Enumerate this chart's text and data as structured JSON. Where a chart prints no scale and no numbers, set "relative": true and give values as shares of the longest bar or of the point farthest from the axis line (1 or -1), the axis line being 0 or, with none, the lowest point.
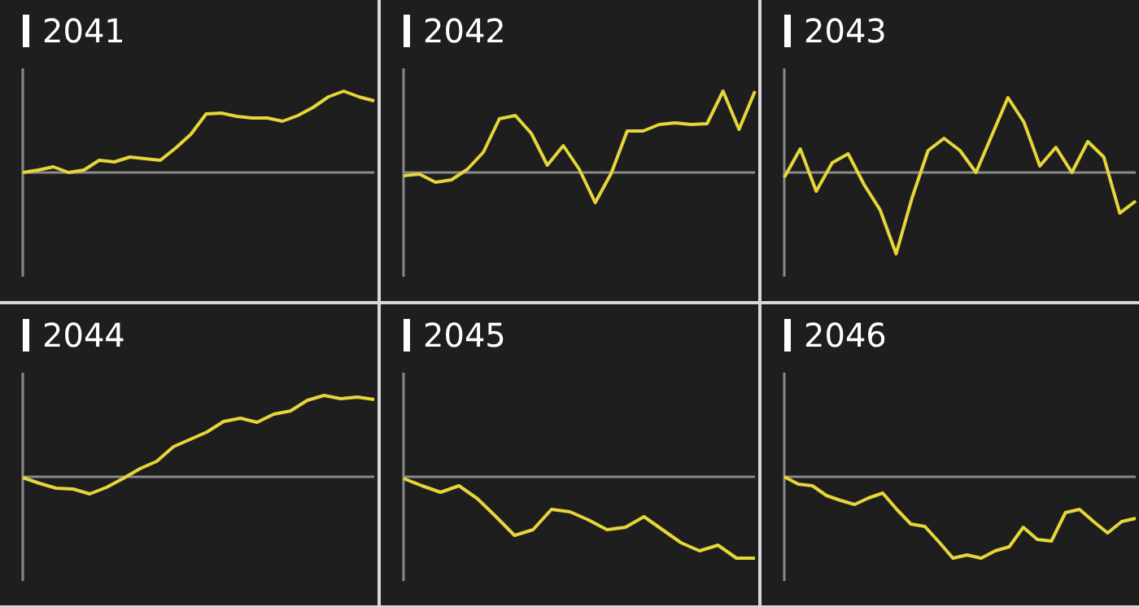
{
  "chart_data": [
    {
      "type": "line",
      "title": "2041",
      "relative": true,
      "marker": "none",
      "categories": [
        null,
        null,
        null,
        null,
        null,
        null,
        null,
        null,
        null,
        null,
        null,
        null,
        null,
        null,
        null,
        null,
        null,
        null,
        null,
        null,
        null,
        null,
        null,
        null
      ],
      "series": [
        {
          "color": "#e6d63a",
          "values": [
            0,
            0.03,
            0.07,
            0,
            0.03,
            0.15,
            0.13,
            0.19,
            0.17,
            0.15,
            0.3,
            0.47,
            0.72,
            0.73,
            0.69,
            0.67,
            0.67,
            0.63,
            0.7,
            0.8,
            0.93,
            1,
            0.93,
            0.88
          ]
        }
      ]
    },
    {
      "type": "line",
      "title": "2042",
      "relative": true,
      "marker": "none",
      "categories": [
        null,
        null,
        null,
        null,
        null,
        null,
        null,
        null,
        null,
        null,
        null,
        null,
        null,
        null,
        null,
        null,
        null,
        null,
        null,
        null,
        null,
        null,
        null
      ],
      "series": [
        {
          "color": "#e6d63a",
          "values": [
            -0.04,
            -0.02,
            -0.12,
            -0.09,
            0.04,
            0.25,
            0.66,
            0.7,
            0.48,
            0.09,
            0.33,
            0.04,
            -0.37,
            -0.01,
            0.51,
            0.51,
            0.59,
            0.61,
            0.59,
            0.6,
            1,
            0.53,
            1
          ]
        }
      ]
    },
    {
      "type": "line",
      "title": "2043",
      "relative": true,
      "marker": "none",
      "categories": [
        null,
        null,
        null,
        null,
        null,
        null,
        null,
        null,
        null,
        null,
        null,
        null,
        null,
        null,
        null,
        null,
        null,
        null,
        null,
        null,
        null,
        null,
        null
      ],
      "series": [
        {
          "color": "#e6d63a",
          "values": [
            -0.06,
            0.29,
            -0.23,
            0.12,
            0.23,
            -0.15,
            -0.46,
            -1,
            -0.31,
            0.27,
            0.42,
            0.27,
            0,
            0.46,
            0.92,
            0.62,
            0.08,
            0.31,
            0,
            0.38,
            0.19,
            -0.5,
            -0.35
          ]
        }
      ]
    },
    {
      "type": "line",
      "title": "2044",
      "relative": true,
      "marker": "none",
      "categories": [
        null,
        null,
        null,
        null,
        null,
        null,
        null,
        null,
        null,
        null,
        null,
        null,
        null,
        null,
        null,
        null,
        null,
        null,
        null,
        null,
        null,
        null
      ],
      "series": [
        {
          "color": "#e6d63a",
          "values": [
            -0.01,
            -0.08,
            -0.14,
            -0.15,
            -0.21,
            -0.13,
            -0.02,
            0.1,
            0.19,
            0.37,
            0.46,
            0.55,
            0.68,
            0.72,
            0.67,
            0.77,
            0.81,
            0.94,
            1,
            0.96,
            0.98,
            0.95
          ]
        }
      ]
    },
    {
      "type": "line",
      "title": "2045",
      "relative": true,
      "marker": "none",
      "categories": [
        null,
        null,
        null,
        null,
        null,
        null,
        null,
        null,
        null,
        null,
        null,
        null,
        null,
        null,
        null,
        null,
        null,
        null,
        null,
        null
      ],
      "series": [
        {
          "color": "#e6d63a",
          "values": [
            -0.02,
            -0.11,
            -0.19,
            -0.11,
            -0.27,
            -0.49,
            -0.72,
            -0.65,
            -0.4,
            -0.43,
            -0.53,
            -0.65,
            -0.62,
            -0.49,
            -0.65,
            -0.81,
            -0.91,
            -0.84,
            -1,
            -1
          ]
        }
      ]
    },
    {
      "type": "line",
      "title": "2046",
      "relative": true,
      "marker": "none",
      "categories": [
        null,
        null,
        null,
        null,
        null,
        null,
        null,
        null,
        null,
        null,
        null,
        null,
        null,
        null,
        null,
        null,
        null,
        null,
        null,
        null,
        null,
        null,
        null,
        null,
        null,
        null
      ],
      "series": [
        {
          "color": "#e6d63a",
          "values": [
            0,
            -0.09,
            -0.11,
            -0.23,
            -0.29,
            -0.34,
            -0.26,
            -0.2,
            -0.4,
            -0.58,
            -0.61,
            -0.8,
            -1,
            -0.96,
            -1,
            -0.91,
            -0.86,
            -0.62,
            -0.77,
            -0.79,
            -0.44,
            -0.4,
            -0.55,
            -0.69,
            -0.55,
            -0.51
          ]
        }
      ]
    }
  ]
}
